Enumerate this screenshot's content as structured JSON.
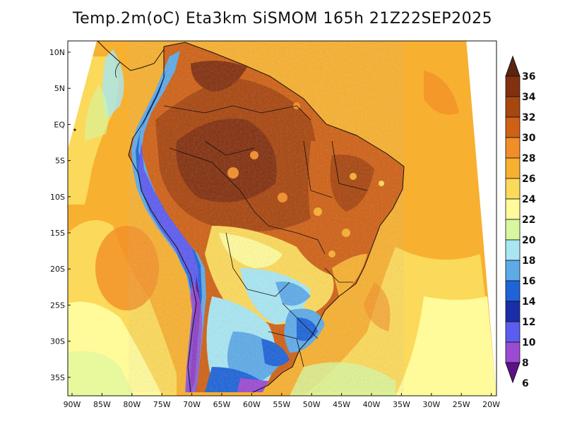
{
  "title": "Temp.2m(oC) Eta3km SiSMOM 165h 21Z22SEP2025",
  "map": {
    "lat_labels": [
      "10N",
      "5N",
      "EQ",
      "5S",
      "10S",
      "15S",
      "20S",
      "25S",
      "30S",
      "35S"
    ],
    "lon_labels": [
      "90W",
      "85W",
      "80W",
      "75W",
      "70W",
      "65W",
      "60W",
      "55W",
      "50W",
      "45W",
      "40W",
      "35W",
      "30W",
      "25W",
      "20W"
    ],
    "lat_range": [
      -38,
      11
    ],
    "lon_range": [
      -91,
      -19.5
    ]
  },
  "colorbar": {
    "labels": [
      "36",
      "34",
      "32",
      "30",
      "28",
      "26",
      "24",
      "22",
      "20",
      "18",
      "16",
      "14",
      "12",
      "10",
      "8",
      "6"
    ],
    "colors": [
      "#5c2310",
      "#83300f",
      "#a8460f",
      "#cf6116",
      "#f28e28",
      "#f7b030",
      "#fbd95a",
      "#fffa9a",
      "#d7f7a0",
      "#a8e6f2",
      "#5eaae8",
      "#1e64d8",
      "#1a2ea8",
      "#5c5cf0",
      "#9b4bd2",
      "#5c1189"
    ]
  },
  "palette": {
    "ocean_warm": "#f7b030",
    "ocean_cool": "#fffa9a",
    "amazon": "#a8460f",
    "andes": "#5c1189"
  }
}
